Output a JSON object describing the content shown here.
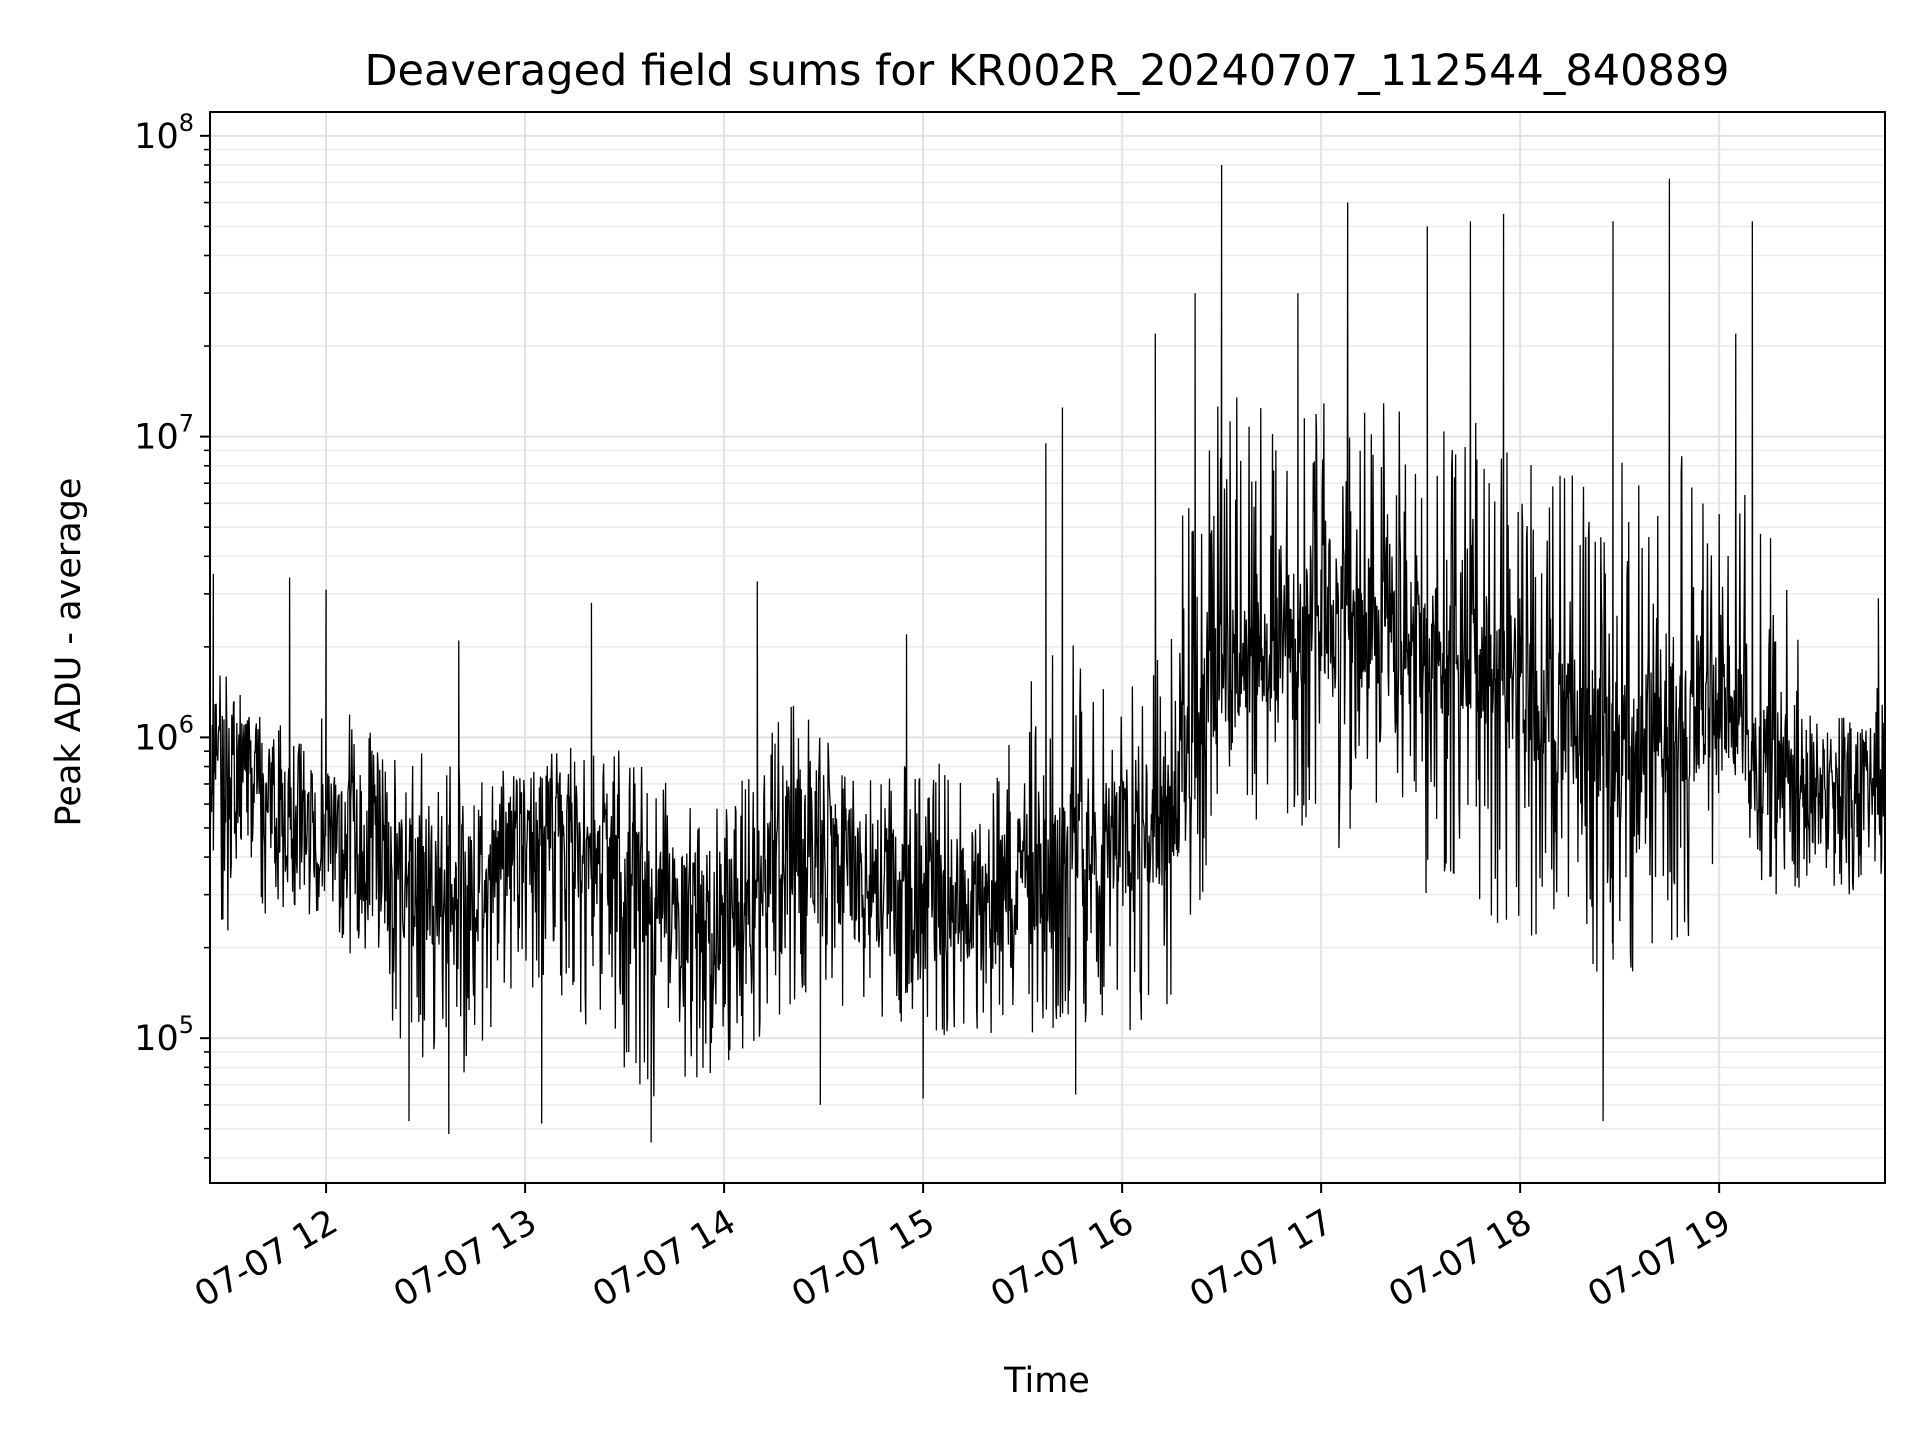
{
  "chart_data": {
    "type": "line",
    "title": "Deaveraged field sums for KR002R_20240707_112544_840889",
    "xlabel": "Time",
    "ylabel": "Peak ADU - average",
    "yscale": "log",
    "xlim": [
      "2024-07-07 11:25",
      "2024-07-07 19:50"
    ],
    "ylim": [
      33000,
      120000000
    ],
    "grid": true,
    "x_ticks": [
      {
        "value": "2024-07-07 12:00",
        "label": "07-07 12"
      },
      {
        "value": "2024-07-07 13:00",
        "label": "07-07 13"
      },
      {
        "value": "2024-07-07 14:00",
        "label": "07-07 14"
      },
      {
        "value": "2024-07-07 15:00",
        "label": "07-07 15"
      },
      {
        "value": "2024-07-07 16:00",
        "label": "07-07 16"
      },
      {
        "value": "2024-07-07 17:00",
        "label": "07-07 17"
      },
      {
        "value": "2024-07-07 18:00",
        "label": "07-07 18"
      },
      {
        "value": "2024-07-07 19:00",
        "label": "07-07 19"
      }
    ],
    "y_ticks": [
      {
        "value": 100000,
        "base": "10",
        "exp": "5"
      },
      {
        "value": 1000000,
        "base": "10",
        "exp": "6"
      },
      {
        "value": 10000000,
        "base": "10",
        "exp": "7"
      },
      {
        "value": 100000000,
        "base": "10",
        "exp": "8"
      }
    ],
    "line_color": "#000000",
    "series_envelope": {
      "time": [
        "2024-07-07 11:25",
        "2024-07-07 11:45",
        "2024-07-07 12:00",
        "2024-07-07 12:20",
        "2024-07-07 12:40",
        "2024-07-07 13:00",
        "2024-07-07 13:20",
        "2024-07-07 13:40",
        "2024-07-07 14:00",
        "2024-07-07 14:20",
        "2024-07-07 14:40",
        "2024-07-07 15:00",
        "2024-07-07 15:20",
        "2024-07-07 15:40",
        "2024-07-07 16:00",
        "2024-07-07 16:15",
        "2024-07-07 16:30",
        "2024-07-07 16:50",
        "2024-07-07 17:10",
        "2024-07-07 17:30",
        "2024-07-07 17:50",
        "2024-07-07 18:10",
        "2024-07-07 18:30",
        "2024-07-07 18:50",
        "2024-07-07 19:00",
        "2024-07-07 19:15",
        "2024-07-07 19:30",
        "2024-07-07 19:50"
      ],
      "typical": [
        900000,
        600000,
        550000,
        350000,
        300000,
        500000,
        420000,
        260000,
        230000,
        450000,
        350000,
        280000,
        300000,
        360000,
        450000,
        550000,
        1800000,
        2200000,
        2500000,
        2000000,
        1800000,
        1200000,
        900000,
        1100000,
        1500000,
        750000,
        700000,
        800000
      ],
      "low": [
        200000,
        250000,
        250000,
        100000,
        70000,
        150000,
        100000,
        60000,
        80000,
        120000,
        120000,
        100000,
        100000,
        100000,
        100000,
        120000,
        500000,
        500000,
        400000,
        300000,
        250000,
        200000,
        150000,
        200000,
        400000,
        300000,
        300000,
        300000
      ],
      "high": [
        3500000,
        1800000,
        3000000,
        2000000,
        2200000,
        1000000,
        2800000,
        1800000,
        1200000,
        3300000,
        1500000,
        2200000,
        1500000,
        12000000,
        3000000,
        22000000,
        80000000,
        50000000,
        60000000,
        50000000,
        52000000,
        40000000,
        50000000,
        70000000,
        20000000,
        52000000,
        1000000,
        3000000
      ]
    },
    "spikes": [
      {
        "time": "2024-07-07 11:26",
        "value": 3500000
      },
      {
        "time": "2024-07-07 11:49",
        "value": 3400000
      },
      {
        "time": "2024-07-07 12:00",
        "value": 3100000
      },
      {
        "time": "2024-07-07 12:40",
        "value": 2100000
      },
      {
        "time": "2024-07-07 13:20",
        "value": 2800000
      },
      {
        "time": "2024-07-07 14:10",
        "value": 3300000
      },
      {
        "time": "2024-07-07 14:55",
        "value": 2200000
      },
      {
        "time": "2024-07-07 15:37",
        "value": 9500000
      },
      {
        "time": "2024-07-07 15:42",
        "value": 12500000
      },
      {
        "time": "2024-07-07 16:10",
        "value": 22000000
      },
      {
        "time": "2024-07-07 16:22",
        "value": 30000000
      },
      {
        "time": "2024-07-07 16:30",
        "value": 80000000
      },
      {
        "time": "2024-07-07 16:53",
        "value": 30000000
      },
      {
        "time": "2024-07-07 17:08",
        "value": 60000000
      },
      {
        "time": "2024-07-07 17:32",
        "value": 50000000
      },
      {
        "time": "2024-07-07 17:45",
        "value": 52000000
      },
      {
        "time": "2024-07-07 17:55",
        "value": 55000000
      },
      {
        "time": "2024-07-07 18:28",
        "value": 52000000
      },
      {
        "time": "2024-07-07 18:45",
        "value": 72000000
      },
      {
        "time": "2024-07-07 19:05",
        "value": 22000000
      },
      {
        "time": "2024-07-07 19:10",
        "value": 52000000
      },
      {
        "time": "2024-07-07 19:48",
        "value": 2900000
      }
    ],
    "dips": [
      {
        "time": "2024-07-07 12:25",
        "value": 53000
      },
      {
        "time": "2024-07-07 12:37",
        "value": 48000
      },
      {
        "time": "2024-07-07 13:05",
        "value": 52000
      },
      {
        "time": "2024-07-07 13:38",
        "value": 45000
      },
      {
        "time": "2024-07-07 14:29",
        "value": 60000
      },
      {
        "time": "2024-07-07 15:00",
        "value": 63000
      },
      {
        "time": "2024-07-07 15:46",
        "value": 65000
      },
      {
        "time": "2024-07-07 18:25",
        "value": 53000
      }
    ]
  }
}
